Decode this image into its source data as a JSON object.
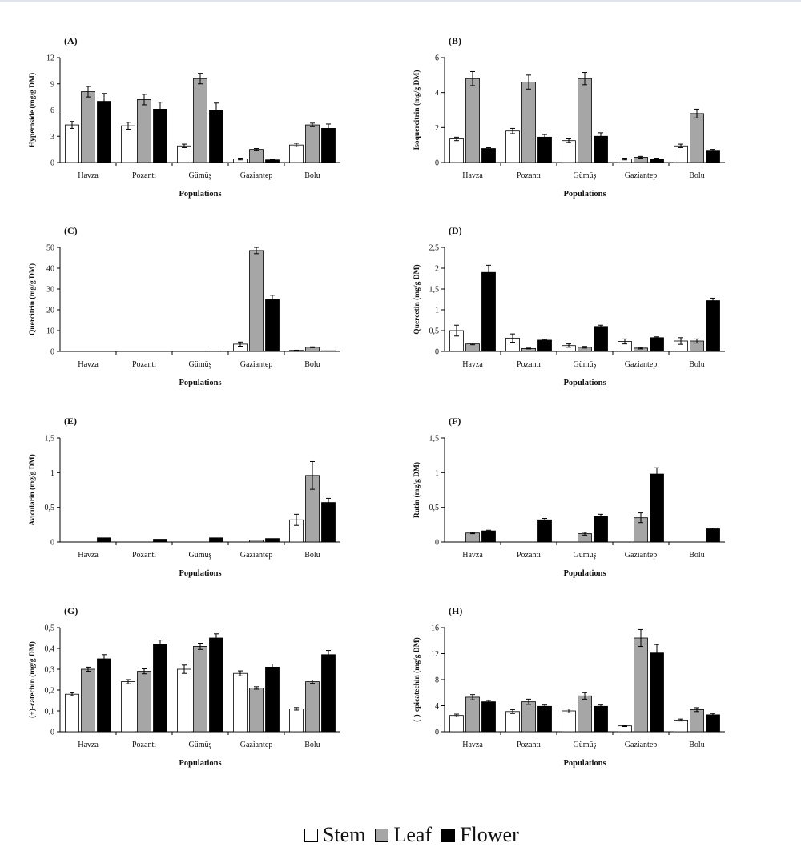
{
  "figure": {
    "legend": [
      {
        "label": "Stem",
        "color": "#ffffff"
      },
      {
        "label": "Leaf",
        "color": "#a6a6a6"
      },
      {
        "label": "Flower",
        "color": "#000000"
      }
    ]
  },
  "chart_data": [
    {
      "type": "bar",
      "panel": "(A)",
      "xlabel": "Populations",
      "ylabel": "Hyperoside (mg/g DM)",
      "categories": [
        "Havza",
        "Pozantı",
        "Gümüş",
        "Gaziantep",
        "Bolu"
      ],
      "ylim": [
        0,
        12
      ],
      "yticks": [
        "0",
        "3",
        "6",
        "9",
        "12"
      ],
      "series": [
        {
          "name": "Stem",
          "color": "#ffffff",
          "values": [
            4.3,
            4.2,
            1.9,
            0.4,
            2.0
          ],
          "errors": [
            0.4,
            0.4,
            0.2,
            0.1,
            0.2
          ]
        },
        {
          "name": "Leaf",
          "color": "#a6a6a6",
          "values": [
            8.1,
            7.2,
            9.6,
            1.5,
            4.3
          ],
          "errors": [
            0.6,
            0.6,
            0.6,
            0.1,
            0.2
          ]
        },
        {
          "name": "Flower",
          "color": "#000000",
          "values": [
            7.0,
            6.1,
            6.0,
            0.3,
            3.9
          ],
          "errors": [
            0.9,
            0.8,
            0.8,
            0.05,
            0.5
          ]
        }
      ]
    },
    {
      "type": "bar",
      "panel": "(B)",
      "xlabel": "Populations",
      "ylabel": "Isoquercitrin (mg/g DM)",
      "categories": [
        "Havza",
        "Pozantı",
        "Gümüş",
        "Gaziantep",
        "Bolu"
      ],
      "ylim": [
        0,
        6
      ],
      "yticks": [
        "0",
        "2",
        "4",
        "6"
      ],
      "series": [
        {
          "name": "Stem",
          "color": "#ffffff",
          "values": [
            1.35,
            1.8,
            1.25,
            0.2,
            0.95
          ],
          "errors": [
            0.1,
            0.15,
            0.1,
            0.05,
            0.1
          ]
        },
        {
          "name": "Leaf",
          "color": "#a6a6a6",
          "values": [
            4.8,
            4.6,
            4.8,
            0.3,
            2.8
          ],
          "errors": [
            0.4,
            0.4,
            0.35,
            0.05,
            0.25
          ]
        },
        {
          "name": "Flower",
          "color": "#000000",
          "values": [
            0.8,
            1.45,
            1.5,
            0.2,
            0.7
          ],
          "errors": [
            0.05,
            0.15,
            0.2,
            0.05,
            0.05
          ]
        }
      ]
    },
    {
      "type": "bar",
      "panel": "(C)",
      "xlabel": "Populations",
      "ylabel": "Quercitrin (mg/g DM)",
      "categories": [
        "Havza",
        "Pozantı",
        "Gümüş",
        "Gaziantep",
        "Bolu"
      ],
      "ylim": [
        0,
        50
      ],
      "yticks": [
        "0",
        "10",
        "20",
        "30",
        "40",
        "50"
      ],
      "series": [
        {
          "name": "Stem",
          "color": "#ffffff",
          "values": [
            0,
            0,
            0,
            3.5,
            0.5
          ],
          "errors": [
            0,
            0,
            0,
            1.0,
            0.1
          ]
        },
        {
          "name": "Leaf",
          "color": "#a6a6a6",
          "values": [
            0,
            0,
            0,
            48.5,
            2.0
          ],
          "errors": [
            0,
            0,
            0,
            1.5,
            0.2
          ]
        },
        {
          "name": "Flower",
          "color": "#000000",
          "values": [
            0,
            0,
            0.2,
            25.0,
            0.3
          ],
          "errors": [
            0,
            0,
            0,
            2.0,
            0
          ]
        }
      ]
    },
    {
      "type": "bar",
      "panel": "(D)",
      "xlabel": "Populations",
      "ylabel": "Quercetin (mg/g DM)",
      "categories": [
        "Havza",
        "Pozantı",
        "Gümüş",
        "Gaziantep",
        "Bolu"
      ],
      "ylim": [
        0,
        2.5
      ],
      "yticks": [
        "0",
        "0,5",
        "1",
        "1,5",
        "2",
        "2,5"
      ],
      "series": [
        {
          "name": "Stem",
          "color": "#ffffff",
          "values": [
            0.5,
            0.32,
            0.14,
            0.24,
            0.25
          ],
          "errors": [
            0.13,
            0.1,
            0.04,
            0.06,
            0.08
          ]
        },
        {
          "name": "Leaf",
          "color": "#a6a6a6",
          "values": [
            0.18,
            0.07,
            0.1,
            0.08,
            0.25
          ],
          "errors": [
            0.02,
            0.01,
            0.02,
            0.02,
            0.05
          ]
        },
        {
          "name": "Flower",
          "color": "#000000",
          "values": [
            1.9,
            0.27,
            0.6,
            0.33,
            1.22
          ],
          "errors": [
            0.17,
            0.02,
            0.03,
            0.02,
            0.06
          ]
        }
      ]
    },
    {
      "type": "bar",
      "panel": "(E)",
      "xlabel": "Populations",
      "ylabel": "Avicularin (mg/g DM)",
      "categories": [
        "Havza",
        "Pozantı",
        "Gümüş",
        "Gaziantep",
        "Bolu"
      ],
      "ylim": [
        0,
        1.5
      ],
      "yticks": [
        "0",
        "0,5",
        "1",
        "1,5"
      ],
      "series": [
        {
          "name": "Stem",
          "color": "#ffffff",
          "values": [
            0,
            0,
            0,
            0,
            0.32
          ],
          "errors": [
            0,
            0,
            0,
            0,
            0.08
          ]
        },
        {
          "name": "Leaf",
          "color": "#a6a6a6",
          "values": [
            0,
            0,
            0,
            0.03,
            0.96
          ],
          "errors": [
            0,
            0,
            0,
            0,
            0.2
          ]
        },
        {
          "name": "Flower",
          "color": "#000000",
          "values": [
            0.06,
            0.04,
            0.06,
            0.05,
            0.57
          ],
          "errors": [
            0,
            0,
            0,
            0,
            0.06
          ]
        }
      ]
    },
    {
      "type": "bar",
      "panel": "(F)",
      "xlabel": "Populations",
      "ylabel": "Rutin (mg/g DM)",
      "categories": [
        "Havza",
        "Pozantı",
        "Gümüş",
        "Gaziantep",
        "Bolu"
      ],
      "ylim": [
        0,
        1.5
      ],
      "yticks": [
        "0",
        "0,5",
        "1",
        "1,5"
      ],
      "series": [
        {
          "name": "Stem",
          "color": "#ffffff",
          "values": [
            0,
            0,
            0,
            0,
            0
          ],
          "errors": [
            0,
            0,
            0,
            0,
            0
          ]
        },
        {
          "name": "Leaf",
          "color": "#a6a6a6",
          "values": [
            0.13,
            0,
            0.12,
            0.35,
            0
          ],
          "errors": [
            0.01,
            0,
            0.02,
            0.07,
            0
          ]
        },
        {
          "name": "Flower",
          "color": "#000000",
          "values": [
            0.16,
            0.32,
            0.37,
            0.98,
            0.19
          ],
          "errors": [
            0.01,
            0.02,
            0.03,
            0.09,
            0.01
          ]
        }
      ]
    },
    {
      "type": "bar",
      "panel": "(G)",
      "xlabel": "Populations",
      "ylabel": "(+)-catechin (mg/g DM)",
      "categories": [
        "Havza",
        "Pozantı",
        "Gümüş",
        "Gaziantep",
        "Bolu"
      ],
      "ylim": [
        0,
        0.5
      ],
      "yticks": [
        "0",
        "0,1",
        "0,2",
        "0,3",
        "0,4",
        "0,5"
      ],
      "series": [
        {
          "name": "Stem",
          "color": "#ffffff",
          "values": [
            0.18,
            0.24,
            0.3,
            0.28,
            0.11
          ],
          "errors": [
            0.007,
            0.01,
            0.02,
            0.012,
            0.006
          ]
        },
        {
          "name": "Leaf",
          "color": "#a6a6a6",
          "values": [
            0.3,
            0.29,
            0.41,
            0.21,
            0.24
          ],
          "errors": [
            0.01,
            0.012,
            0.015,
            0.006,
            0.008
          ]
        },
        {
          "name": "Flower",
          "color": "#000000",
          "values": [
            0.35,
            0.42,
            0.45,
            0.31,
            0.37
          ],
          "errors": [
            0.02,
            0.02,
            0.02,
            0.015,
            0.02
          ]
        }
      ]
    },
    {
      "type": "bar",
      "panel": "(H)",
      "xlabel": "Populations",
      "ylabel": "(-)-epicatechin (mg/g DM)",
      "categories": [
        "Havza",
        "Pozantı",
        "Gümüş",
        "Gaziantep",
        "Bolu"
      ],
      "ylim": [
        0,
        16
      ],
      "yticks": [
        "0",
        "4",
        "8",
        "12",
        "16"
      ],
      "series": [
        {
          "name": "Stem",
          "color": "#ffffff",
          "values": [
            2.5,
            3.1,
            3.2,
            0.9,
            1.8
          ],
          "errors": [
            0.2,
            0.3,
            0.3,
            0.1,
            0.15
          ]
        },
        {
          "name": "Leaf",
          "color": "#a6a6a6",
          "values": [
            5.3,
            4.6,
            5.5,
            14.4,
            3.4
          ],
          "errors": [
            0.4,
            0.4,
            0.5,
            1.3,
            0.3
          ]
        },
        {
          "name": "Flower",
          "color": "#000000",
          "values": [
            4.6,
            3.9,
            3.9,
            12.1,
            2.6
          ],
          "errors": [
            0.2,
            0.2,
            0.2,
            1.3,
            0.2
          ]
        }
      ]
    }
  ]
}
